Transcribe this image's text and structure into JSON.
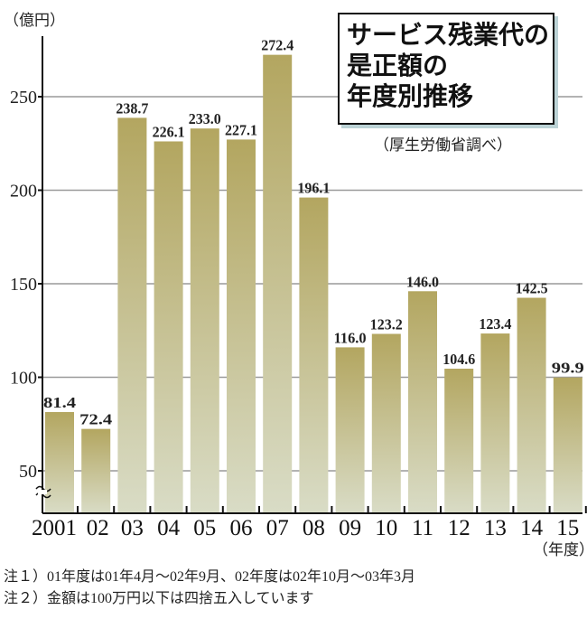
{
  "chart_data": {
    "type": "bar",
    "title": [
      "サービス残業代の",
      "是正額の",
      "年度別推移"
    ],
    "source": "（厚生労働省調べ）",
    "ylabel": "（億円）",
    "xlabel": "（年度）",
    "categories": [
      "2001",
      "02",
      "03",
      "04",
      "05",
      "06",
      "07",
      "08",
      "09",
      "10",
      "11",
      "12",
      "13",
      "14",
      "15"
    ],
    "values": [
      81.4,
      72.4,
      238.7,
      226.1,
      233.0,
      227.1,
      272.4,
      196.1,
      116.0,
      123.2,
      146.0,
      104.6,
      123.4,
      142.5,
      99.9
    ],
    "value_labels": [
      "81.4",
      "72.4",
      "238.7",
      "226.1",
      "233.0",
      "227.1",
      "272.4",
      "196.1",
      "116.0",
      "123.2",
      "146.0",
      "104.6",
      "123.4",
      "142.5",
      "99.9"
    ],
    "yticks": [
      50,
      100,
      150,
      200,
      250
    ],
    "ylim": [
      22,
      280
    ],
    "axis_break": true,
    "grid": true,
    "colors": {
      "bar_top": "#b3a660",
      "bar_bottom": "#d9dcc6",
      "grid": "#9a9a9a"
    }
  },
  "notes": [
    "注１）01年度は01年4月～02年9月、02年度は02年10月～03年3月",
    "注２）金額は100万円以下は四捨五入しています"
  ]
}
